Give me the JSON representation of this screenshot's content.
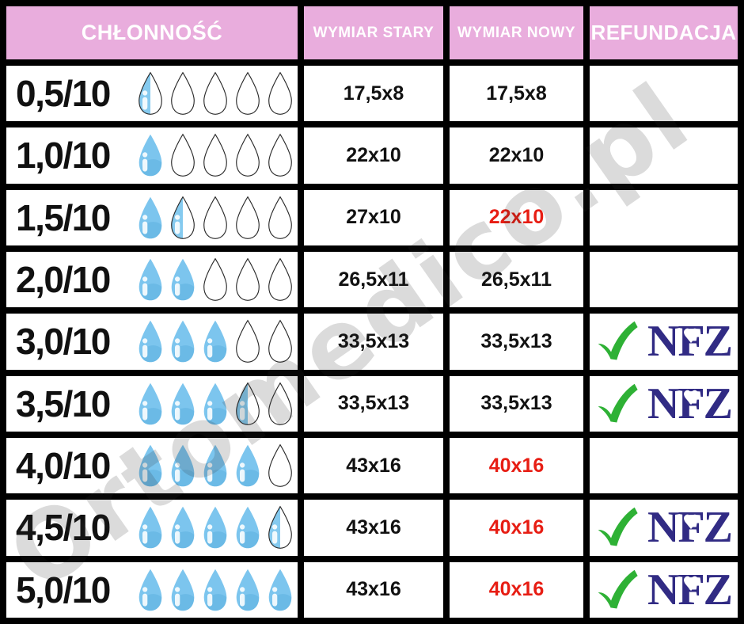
{
  "header": {
    "absorbency": "CHŁONNOŚĆ",
    "old_size": "WYMIAR STARY",
    "new_size": "WYMIAR NOWY",
    "refund": "REFUNDACJA"
  },
  "watermark_text": "Ortomedico.pl",
  "nfz_label": "NFZ",
  "colors": {
    "header_bg": "#e9addd",
    "header_text": "#ffffff",
    "red": "#e71d13",
    "black_text": "#111111",
    "navy": "#312b84",
    "green": "#2eb135",
    "drop_blue": "#7cc5ee",
    "drop_shade": "#66b5e3",
    "drop_half_blue": "#85caef",
    "drop_outline": "#2a2a2a",
    "border": "#000000",
    "watermark_gray": "#c9c9c9"
  },
  "rows": [
    {
      "absorbency": "0,5/10",
      "drops_value": 0.5,
      "drops_full": 0,
      "drops_half": 1,
      "drops_empty": 4,
      "old": "17,5x8",
      "new": "17,5x8",
      "new_highlight": false,
      "refund": false
    },
    {
      "absorbency": "1,0/10",
      "drops_value": 1.0,
      "drops_full": 1,
      "drops_half": 0,
      "drops_empty": 4,
      "old": "22x10",
      "new": "22x10",
      "new_highlight": false,
      "refund": false
    },
    {
      "absorbency": "1,5/10",
      "drops_value": 1.5,
      "drops_full": 1,
      "drops_half": 1,
      "drops_empty": 3,
      "old": "27x10",
      "new": "22x10",
      "new_highlight": true,
      "refund": false
    },
    {
      "absorbency": "2,0/10",
      "drops_value": 2.0,
      "drops_full": 2,
      "drops_half": 0,
      "drops_empty": 3,
      "old": "26,5x11",
      "new": "26,5x11",
      "new_highlight": false,
      "refund": false
    },
    {
      "absorbency": "3,0/10",
      "drops_value": 3.0,
      "drops_full": 3,
      "drops_half": 0,
      "drops_empty": 2,
      "old": "33,5x13",
      "new": "33,5x13",
      "new_highlight": false,
      "refund": true
    },
    {
      "absorbency": "3,5/10",
      "drops_value": 3.5,
      "drops_full": 3,
      "drops_half": 1,
      "drops_empty": 1,
      "old": "33,5x13",
      "new": "33,5x13",
      "new_highlight": false,
      "refund": true
    },
    {
      "absorbency": "4,0/10",
      "drops_value": 4.0,
      "drops_full": 4,
      "drops_half": 0,
      "drops_empty": 1,
      "old": "43x16",
      "new": "40x16",
      "new_highlight": true,
      "refund": false
    },
    {
      "absorbency": "4,5/10",
      "drops_value": 4.5,
      "drops_full": 4,
      "drops_half": 1,
      "drops_empty": 0,
      "old": "43x16",
      "new": "40x16",
      "new_highlight": true,
      "refund": true
    },
    {
      "absorbency": "5,0/10",
      "drops_value": 5.0,
      "drops_full": 5,
      "drops_half": 0,
      "drops_empty": 0,
      "old": "43x16",
      "new": "40x16",
      "new_highlight": true,
      "refund": true
    }
  ],
  "chart_data": {
    "type": "table",
    "title": "",
    "columns": [
      "CHŁONNOŚĆ",
      "WYMIAR STARY",
      "WYMIAR NOWY",
      "REFUNDACJA"
    ],
    "rows": [
      [
        "0,5/10",
        "17,5x8",
        "17,5x8",
        ""
      ],
      [
        "1,0/10",
        "22x10",
        "22x10",
        ""
      ],
      [
        "1,5/10",
        "27x10",
        "22x10",
        ""
      ],
      [
        "2,0/10",
        "26,5x11",
        "26,5x11",
        ""
      ],
      [
        "3,0/10",
        "33,5x13",
        "33,5x13",
        "NFZ"
      ],
      [
        "3,5/10",
        "33,5x13",
        "33,5x13",
        "NFZ"
      ],
      [
        "4,0/10",
        "43x16",
        "40x16",
        ""
      ],
      [
        "4,5/10",
        "43x16",
        "40x16",
        "NFZ"
      ],
      [
        "5,0/10",
        "43x16",
        "40x16",
        "NFZ"
      ]
    ],
    "drop_scale_max": 5,
    "drops_per_row": [
      0.5,
      1.0,
      1.5,
      2.0,
      3.0,
      3.5,
      4.0,
      4.5,
      5.0
    ],
    "changed_new_dimensions": [
      "1,5/10",
      "4,0/10",
      "4,5/10",
      "5,0/10"
    ]
  }
}
